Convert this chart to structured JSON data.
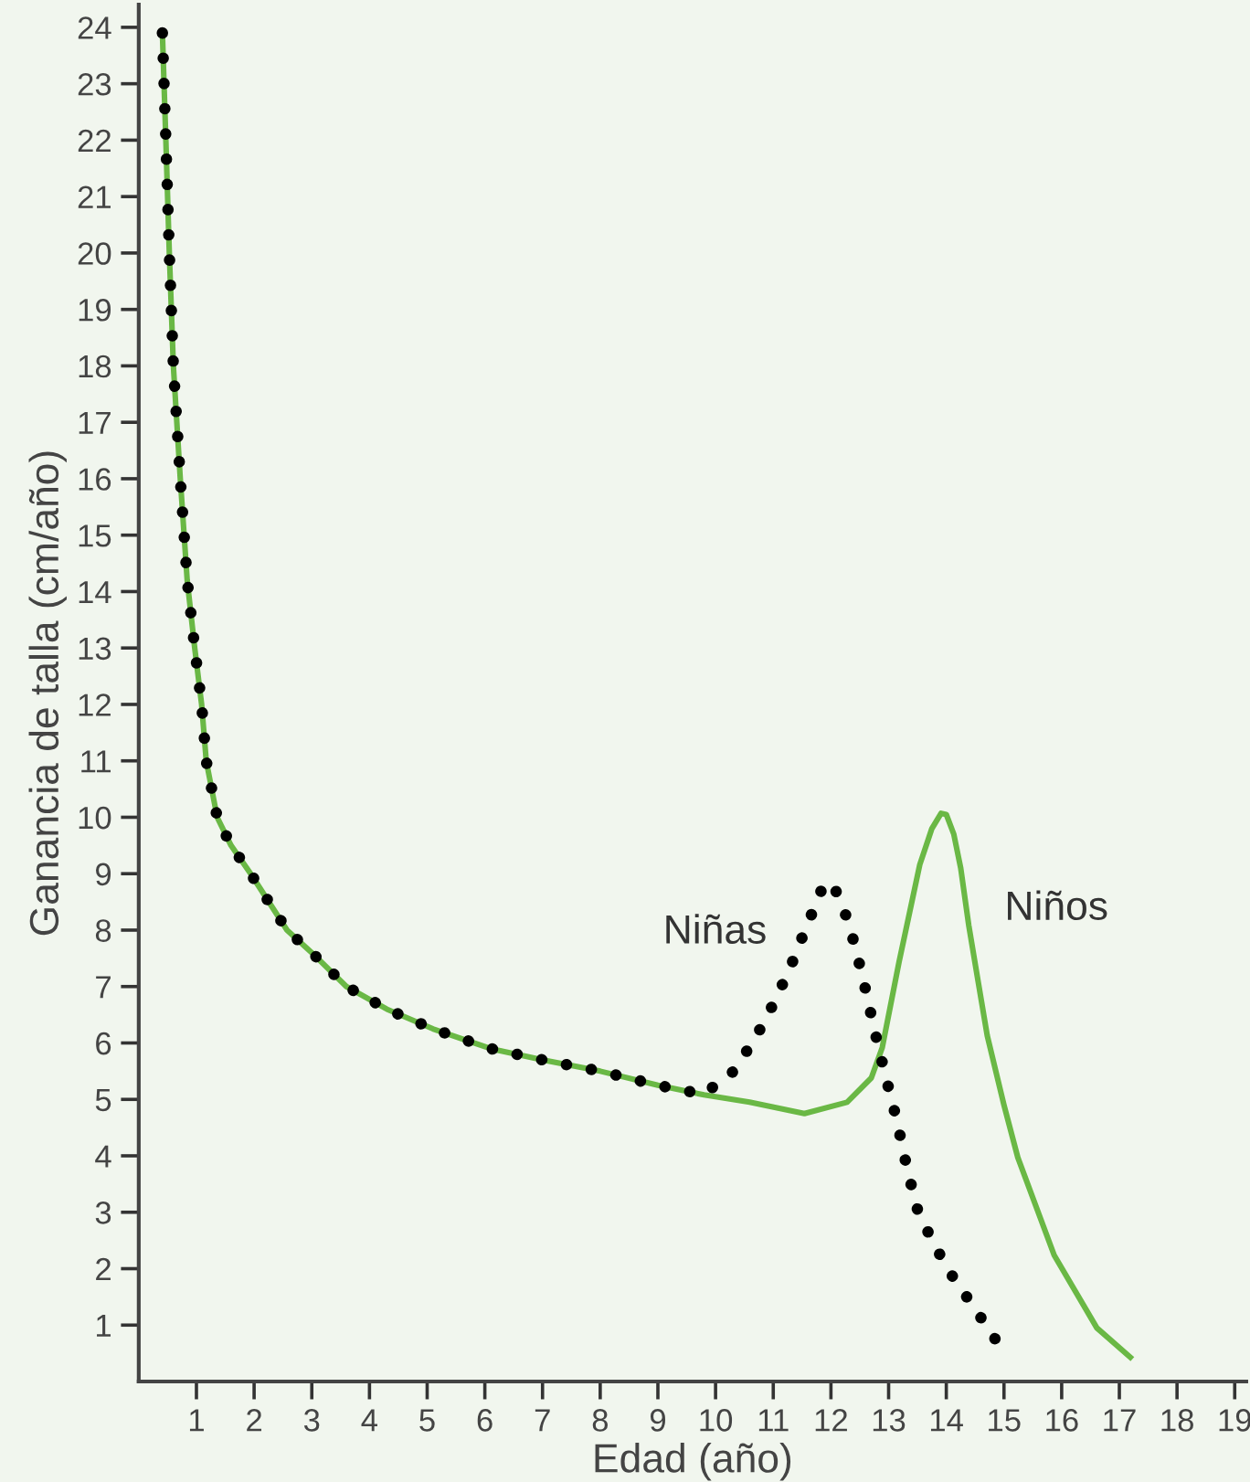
{
  "chart_data": {
    "type": "line",
    "xlabel": "Edad (año)",
    "ylabel": "Ganancia de talla (cm/año)",
    "xlim": [
      0,
      19.2
    ],
    "ylim": [
      0,
      24.4
    ],
    "xticks": [
      1,
      2,
      3,
      4,
      5,
      6,
      7,
      8,
      9,
      10,
      11,
      12,
      13,
      14,
      15,
      16,
      17,
      18,
      19
    ],
    "yticks": [
      1,
      2,
      3,
      4,
      5,
      6,
      7,
      8,
      9,
      10,
      11,
      12,
      13,
      14,
      15,
      16,
      17,
      18,
      19,
      20,
      21,
      22,
      23,
      24
    ],
    "grid": false,
    "legend": false,
    "series": [
      {
        "name": "Niños",
        "color": "#6ab845",
        "line_style": "solid",
        "marker": "none",
        "x": [
          0.41,
          0.47,
          0.53,
          0.6,
          0.72,
          0.84,
          0.97,
          1.09,
          1.17,
          1.36,
          1.6,
          1.94,
          2.57,
          3.0,
          3.6,
          4.3,
          5.1,
          6.1,
          7.0,
          8,
          9,
          9.8,
          10.59,
          11.54,
          12.28,
          12.7,
          12.89,
          13.18,
          13.54,
          13.75,
          13.91,
          14.0,
          14.13,
          14.25,
          14.39,
          14.55,
          14.71,
          15.0,
          15.24,
          15.87,
          16.61,
          17.19
        ],
        "values": [
          23.9,
          22,
          20,
          18,
          16,
          14.2,
          13,
          12,
          11,
          10,
          9.5,
          9,
          8,
          7.6,
          7,
          6.6,
          6.25,
          5.9,
          5.7,
          5.5,
          5.25,
          5.08,
          4.95,
          4.75,
          4.95,
          5.38,
          5.92,
          7.43,
          9.16,
          9.8,
          10.07,
          10.05,
          9.7,
          9.1,
          8.08,
          7.1,
          6.13,
          4.9,
          3.97,
          2.24,
          0.95,
          0.43
        ]
      },
      {
        "name": "Niñas",
        "color": "#000000",
        "line_style": "dotted",
        "marker": "none",
        "x": [
          0.41,
          0.47,
          0.53,
          0.6,
          0.72,
          0.84,
          0.97,
          1.09,
          1.17,
          1.36,
          1.6,
          1.94,
          2.57,
          3.0,
          3.6,
          4.3,
          5.1,
          6.1,
          7.0,
          8,
          9,
          9.79,
          10.29,
          10.67,
          10.99,
          11.28,
          11.54,
          11.8,
          11.89,
          12.06,
          12.21,
          12.41,
          12.57,
          12.8,
          12.97,
          13.14,
          13.33,
          13.5,
          13.78,
          14.11,
          14.49,
          15.0
        ],
        "values": [
          23.9,
          22,
          20,
          18,
          16,
          14.2,
          13,
          12,
          11,
          10,
          9.5,
          9,
          8,
          7.6,
          7,
          6.6,
          6.25,
          5.9,
          5.7,
          5.5,
          5.25,
          5.09,
          5.48,
          6.05,
          6.67,
          7.3,
          7.97,
          8.62,
          8.85,
          8.75,
          8.42,
          7.75,
          7.08,
          6.03,
          5.32,
          4.64,
          3.73,
          3.05,
          2.44,
          1.86,
          1.3,
          0.52
        ]
      }
    ]
  }
}
